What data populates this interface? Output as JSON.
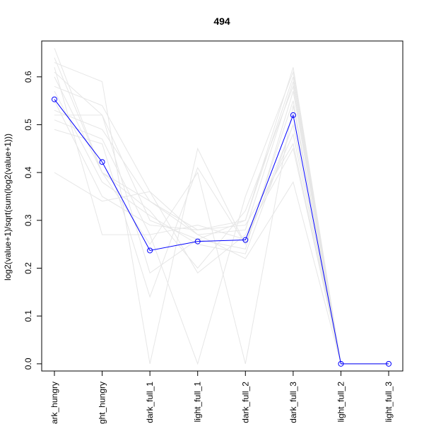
{
  "chart_data": {
    "type": "line",
    "title": "494",
    "xlabel": "",
    "ylabel": "log2(value+1)/sqrt(sum(log2(value+1)))",
    "categories": [
      "dark_hungry",
      "light_hungry",
      "dark_full_1",
      "light_full_1",
      "dark_full_2",
      "dark_full_3",
      "light_full_2",
      "light_full_3"
    ],
    "ylim": [
      -0.015,
      0.675
    ],
    "yticks": [
      0.0,
      0.1,
      0.2,
      0.3,
      0.4,
      0.5,
      0.6
    ],
    "ytick_labels": [
      "0.0",
      "0.1",
      "0.2",
      "0.3",
      "0.4",
      "0.5",
      "0.6"
    ],
    "grid": false,
    "highlight_color": "#0000ff",
    "background_color": "#e6e6e6",
    "highlight_series": {
      "values": [
        0.553,
        0.422,
        0.237,
        0.256,
        0.259,
        0.52,
        0.0,
        0.0
      ],
      "marker": "open-circle"
    },
    "background_series": [
      {
        "values": [
          0.66,
          0.4,
          0.34,
          0.28,
          0.3,
          0.62,
          0.0,
          0.0
        ]
      },
      {
        "values": [
          0.63,
          0.59,
          0.0,
          0.45,
          0.25,
          0.55,
          0.0,
          0.0
        ]
      },
      {
        "values": [
          0.61,
          0.52,
          0.19,
          0.26,
          0.3,
          0.6,
          0.0,
          0.0
        ]
      },
      {
        "values": [
          0.58,
          0.54,
          0.36,
          0.19,
          0.27,
          0.45,
          0.0,
          0.0
        ]
      },
      {
        "values": [
          0.52,
          0.52,
          0.3,
          0.26,
          0.24,
          0.57,
          0.0,
          0.0
        ]
      },
      {
        "values": [
          0.49,
          0.46,
          0.14,
          0.41,
          0.25,
          0.5,
          0.0,
          0.0
        ]
      },
      {
        "values": [
          0.6,
          0.4,
          0.32,
          0.2,
          0.32,
          0.58,
          0.0,
          0.0
        ]
      },
      {
        "values": [
          0.4,
          0.34,
          0.36,
          0.27,
          0.22,
          0.38,
          0.0,
          0.0
        ]
      },
      {
        "values": [
          0.62,
          0.27,
          0.27,
          0.0,
          0.35,
          0.61,
          0.0,
          0.0
        ]
      },
      {
        "values": [
          0.55,
          0.35,
          0.29,
          0.28,
          0.29,
          0.46,
          0.0,
          0.0
        ]
      },
      {
        "values": [
          0.64,
          0.4,
          0.25,
          0.4,
          0.0,
          0.54,
          0.0,
          0.0
        ]
      },
      {
        "values": [
          0.53,
          0.49,
          0.34,
          0.27,
          0.28,
          0.59,
          0.0,
          0.0
        ]
      },
      {
        "values": [
          0.51,
          0.47,
          0.27,
          0.29,
          0.26,
          0.48,
          0.0,
          0.0
        ]
      },
      {
        "values": [
          0.57,
          0.38,
          0.31,
          0.25,
          0.23,
          0.5,
          0.0,
          0.0
        ]
      }
    ]
  }
}
